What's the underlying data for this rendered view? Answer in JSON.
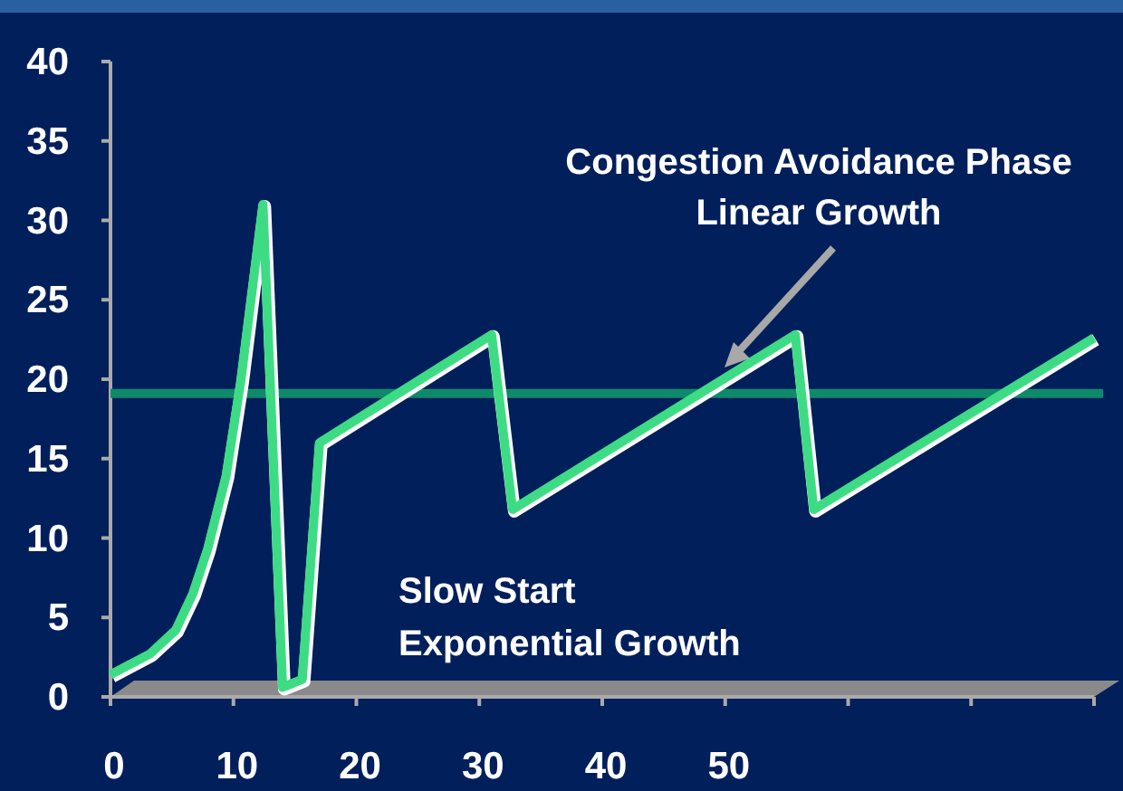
{
  "chart_data": {
    "type": "line",
    "x": [
      0,
      3.2,
      5.3,
      6.7,
      7.9,
      9.4,
      10.6,
      12.4,
      14,
      15.6,
      17,
      31,
      32.7,
      55.7,
      57.2,
      80
    ],
    "series": [
      {
        "color": "#3ddc84",
        "values": [
          1.4,
          2.7,
          4.2,
          6.5,
          9.3,
          13.9,
          19.9,
          31,
          0.6,
          1.1,
          16,
          22.8,
          11.8,
          22.8,
          11.8,
          22.6
        ]
      }
    ],
    "xlim": [
      0,
      80
    ],
    "ylim": [
      0,
      40
    ],
    "xticks": [
      0,
      10,
      20,
      30,
      40,
      50,
      {
        "value": 60,
        "label": null
      },
      {
        "value": 70,
        "label": null
      },
      {
        "value": 80,
        "label": null
      }
    ],
    "yticks": [
      0,
      5,
      10,
      15,
      20,
      25,
      30,
      35,
      40
    ],
    "ref_lines": [
      {
        "axis": "y",
        "value": 19.1,
        "color": "#0e8a6a"
      }
    ],
    "annotations": [
      "Congestion Avoidance Phase\nLinear Growth",
      "Slow Start\nExponential Growth"
    ],
    "grid": false,
    "marker": "none",
    "line_style": "solid"
  }
}
